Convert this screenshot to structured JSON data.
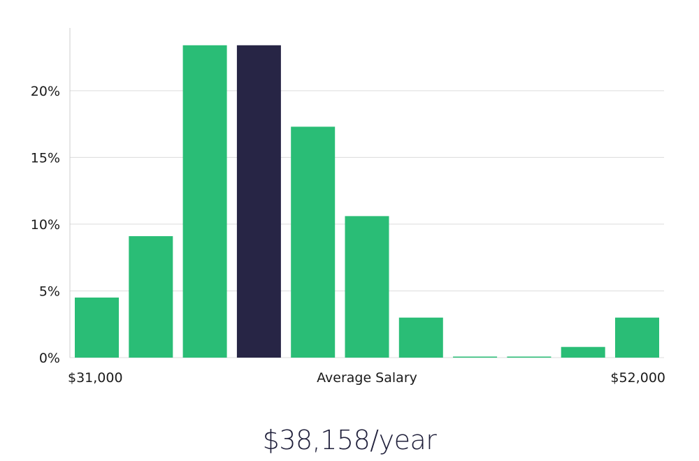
{
  "chart_data": {
    "type": "bar",
    "title": "",
    "xlabel": "Average Salary",
    "ylabel": "",
    "x_start_label": "$31,000",
    "x_end_label": "$52,000",
    "y_ticks": [
      0,
      5,
      10,
      15,
      20
    ],
    "y_tick_labels": [
      "0%",
      "5%",
      "10%",
      "15%",
      "20%"
    ],
    "ylim": [
      0,
      24.7
    ],
    "unit": "%",
    "values": [
      4.5,
      9.1,
      23.4,
      23.4,
      17.3,
      10.6,
      3.0,
      0.05,
      0.05,
      0.8,
      3.0
    ],
    "highlight_index": 3,
    "grid": true,
    "colors": {
      "bar": "#2abd76",
      "highlight": "#272545",
      "grid": "#dcdcdc",
      "axis": "#cccccc"
    }
  },
  "summary": {
    "salary_text": "$38,158/year"
  }
}
